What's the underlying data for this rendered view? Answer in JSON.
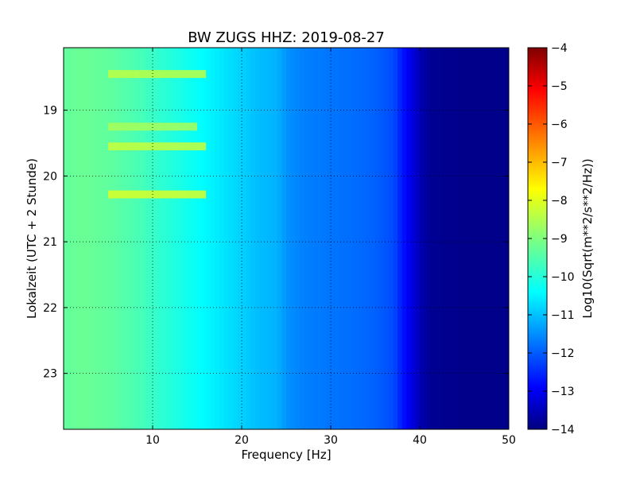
{
  "chart_data": {
    "type": "heatmap",
    "title": "BW ZUGS HHZ: 2019-08-27",
    "xlabel": "Frequency [Hz]",
    "ylabel": "Lokalzeit (UTC + 2 Stunde)",
    "xlim": [
      0,
      50
    ],
    "ylim": [
      18.05,
      23.85
    ],
    "x_ticks": [
      10,
      20,
      30,
      40,
      50
    ],
    "y_ticks": [
      19,
      20,
      21,
      22,
      23
    ],
    "grid": true,
    "colorbar": {
      "label": "Log10(Sqrt(m**2/s**2/Hz))",
      "range": [
        -14,
        -4
      ],
      "ticks": [
        -4,
        -5,
        -6,
        -7,
        -8,
        -9,
        -10,
        -11,
        -12,
        -13,
        -14
      ],
      "colormap": "jet",
      "colors": [
        "#00007f",
        "#0000ff",
        "#007fff",
        "#00ffff",
        "#7fff7f",
        "#ffff00",
        "#ff7f00",
        "#ff0000",
        "#7f0000"
      ]
    },
    "frequency_profile": {
      "frequency_hz": [
        0,
        2,
        5,
        8,
        10,
        12,
        15,
        18,
        20,
        22,
        24,
        25,
        27,
        30,
        33,
        35,
        37,
        38,
        39,
        40,
        41,
        45,
        50
      ],
      "log10_amplitude": [
        -9.3,
        -9.2,
        -9.3,
        -9.5,
        -9.7,
        -9.9,
        -10.2,
        -10.5,
        -10.7,
        -10.9,
        -11.0,
        -11.3,
        -11.5,
        -11.6,
        -11.7,
        -11.8,
        -12.0,
        -12.5,
        -13.0,
        -13.4,
        -13.8,
        -13.9,
        -13.9
      ]
    },
    "bright_bands": [
      {
        "time_h": 18.45,
        "freq_range_hz": [
          5,
          16
        ],
        "log10_amplitude": -8.4
      },
      {
        "time_h": 19.25,
        "freq_range_hz": [
          5,
          15
        ],
        "log10_amplitude": -8.6
      },
      {
        "time_h": 19.55,
        "freq_range_hz": [
          5,
          16
        ],
        "log10_amplitude": -8.3
      },
      {
        "time_h": 20.28,
        "freq_range_hz": [
          5,
          16
        ],
        "log10_amplitude": -8.1
      }
    ]
  }
}
